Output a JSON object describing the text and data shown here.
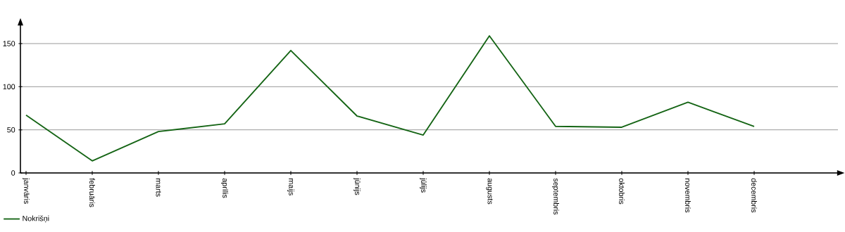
{
  "chart_data": {
    "type": "line",
    "categories": [
      "janvāris",
      "februāris",
      "marts",
      "aprīlis",
      "maijs",
      "jūnijs",
      "jūlijs",
      "augusts",
      "septembris",
      "oktobris",
      "novembris",
      "decembris"
    ],
    "series": [
      {
        "name": "Nokrišņi",
        "color": "#146414",
        "values": [
          67,
          14,
          48,
          57,
          142,
          66,
          44,
          159,
          54,
          53,
          82,
          54
        ]
      }
    ],
    "ylim": [
      0,
      172
    ],
    "yticks": [
      0,
      50,
      100,
      150
    ],
    "grid": "y",
    "legend": "bottom left"
  }
}
